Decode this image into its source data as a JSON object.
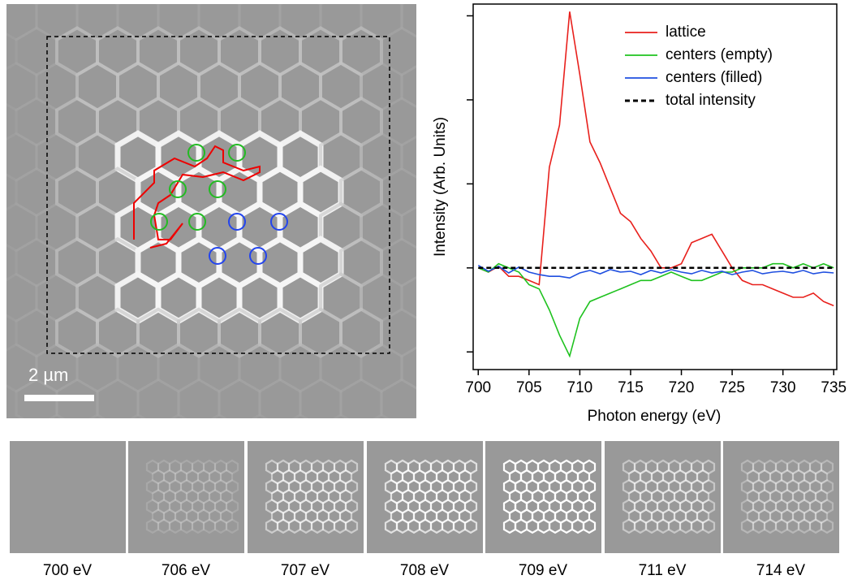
{
  "image_panel": {
    "scale_label": "2 µm"
  },
  "chart_data": {
    "type": "line",
    "xlabel": "Photon energy (eV)",
    "ylabel": "Intensity (Arb. Units)",
    "x": [
      700,
      701,
      702,
      703,
      704,
      705,
      706,
      707,
      708,
      709,
      710,
      711,
      712,
      713,
      714,
      715,
      716,
      717,
      718,
      719,
      720,
      721,
      722,
      723,
      724,
      725,
      726,
      727,
      728,
      729,
      730,
      731,
      732,
      733,
      734,
      735
    ],
    "xlim": [
      699.5,
      735.3
    ],
    "xticks": [
      700,
      705,
      710,
      715,
      720,
      725,
      730,
      735
    ],
    "ylim": [
      -1.21,
      3.14
    ],
    "yticks": [
      -1,
      0,
      1,
      2,
      3
    ],
    "legend": "upper right",
    "series": [
      {
        "name": "lattice",
        "color": "#e8201c",
        "dash": false,
        "values": [
          0.0,
          -0.05,
          0.02,
          -0.1,
          -0.1,
          -0.15,
          -0.2,
          1.2,
          1.7,
          3.05,
          2.3,
          1.5,
          1.25,
          0.95,
          0.65,
          0.55,
          0.35,
          0.2,
          0.0,
          0.0,
          0.05,
          0.3,
          0.35,
          0.4,
          0.2,
          0.0,
          -0.15,
          -0.2,
          -0.2,
          -0.25,
          -0.3,
          -0.35,
          -0.35,
          -0.3,
          -0.4,
          -0.45
        ]
      },
      {
        "name": "centers (empty)",
        "color": "#1fc21f",
        "dash": false,
        "values": [
          0.0,
          -0.05,
          0.05,
          0.0,
          -0.05,
          -0.2,
          -0.25,
          -0.5,
          -0.8,
          -1.05,
          -0.6,
          -0.4,
          -0.35,
          -0.3,
          -0.25,
          -0.2,
          -0.15,
          -0.15,
          -0.1,
          -0.05,
          -0.1,
          -0.15,
          -0.15,
          -0.1,
          -0.05,
          -0.05,
          0.0,
          0.0,
          0.0,
          0.05,
          0.05,
          0.0,
          0.05,
          0.0,
          0.05,
          0.0
        ]
      },
      {
        "name": "centers (filled)",
        "color": "#1f4fe0",
        "dash": false,
        "values": [
          0.03,
          -0.04,
          0.02,
          -0.06,
          0.01,
          -0.05,
          -0.08,
          -0.1,
          -0.1,
          -0.12,
          -0.06,
          -0.03,
          -0.07,
          -0.02,
          -0.05,
          -0.04,
          -0.08,
          -0.03,
          -0.06,
          -0.02,
          -0.05,
          -0.07,
          -0.03,
          -0.06,
          -0.04,
          -0.08,
          -0.05,
          -0.03,
          -0.07,
          -0.05,
          -0.04,
          -0.06,
          -0.03,
          -0.07,
          -0.05,
          -0.06
        ]
      },
      {
        "name": "total intensity",
        "color": "#000000",
        "dash": true,
        "values": [
          0,
          0,
          0,
          0,
          0,
          0,
          0,
          0,
          0,
          0,
          0,
          0,
          0,
          0,
          0,
          0,
          0,
          0,
          0,
          0,
          0,
          0,
          0,
          0,
          0,
          0,
          0,
          0,
          0,
          0,
          0,
          0,
          0,
          0,
          0,
          0
        ]
      }
    ]
  },
  "thumbnails": [
    {
      "label": "700 eV"
    },
    {
      "label": "706 eV"
    },
    {
      "label": "707 eV"
    },
    {
      "label": "708 eV"
    },
    {
      "label": "709 eV"
    },
    {
      "label": "711 eV"
    },
    {
      "label": "714 eV"
    }
  ]
}
